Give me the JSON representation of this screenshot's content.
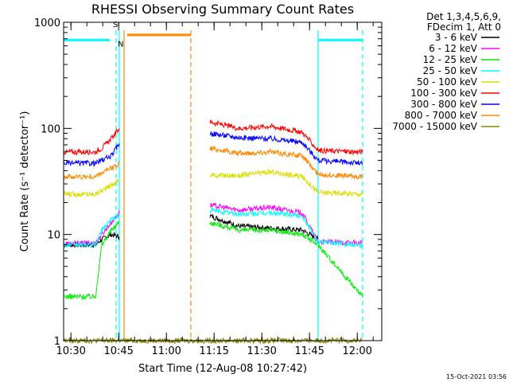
{
  "chart_data": {
    "type": "line",
    "title": "RHESSI Observing Summary Count Rates",
    "xlabel": "Start Time (12-Aug-08 10:27:42)",
    "ylabel": "Count Rate (s⁻¹ detector⁻¹)",
    "yscale": "log",
    "ylim": [
      1,
      1000
    ],
    "xlim_minutes": [
      0,
      100
    ],
    "x_tick_labels": [
      "10:30",
      "10:45",
      "11:00",
      "11:15",
      "11:30",
      "11:45",
      "12:00"
    ],
    "x_tick_minutes": [
      2.3,
      17.3,
      32.3,
      47.3,
      62.3,
      77.3,
      92.3
    ],
    "y_tick_labels": [
      "1",
      "10",
      "100",
      "1000"
    ],
    "y_tick_values": [
      1,
      10,
      100,
      1000
    ],
    "legend_header": [
      "Det 1,3,4,5,6,9,",
      "FDecim 1, Att 0"
    ],
    "footer_date": "15-Oct-2021 03:56",
    "flags": {
      "saa_label": "S",
      "night_label": "N"
    },
    "series": [
      {
        "name": "3 - 6 keV",
        "color": "#000000",
        "segments": [
          [
            [
              0,
              8
            ],
            [
              10,
              8
            ],
            [
              12,
              9
            ],
            [
              15,
              10
            ],
            [
              17.5,
              9.5
            ]
          ],
          [
            [
              46,
              15
            ],
            [
              55,
              12
            ],
            [
              65,
              11.5
            ],
            [
              75,
              11
            ],
            [
              80,
              9
            ]
          ]
        ]
      },
      {
        "name": "6 - 12 keV",
        "color": "#ff00ff",
        "segments": [
          [
            [
              0,
              8.2
            ],
            [
              10,
              8.3
            ],
            [
              12,
              10
            ],
            [
              15,
              13
            ],
            [
              17.5,
              16
            ]
          ],
          [
            [
              46,
              19
            ],
            [
              55,
              17
            ],
            [
              65,
              18
            ],
            [
              75,
              16
            ],
            [
              80,
              8.5
            ],
            [
              94,
              8.3
            ]
          ]
        ]
      },
      {
        "name": "12 - 25 keV",
        "color": "#00ee00",
        "segments": [
          [
            [
              0,
              2.6
            ],
            [
              10,
              2.6
            ],
            [
              12,
              8
            ],
            [
              15,
              11
            ],
            [
              17.5,
              13
            ]
          ],
          [
            [
              46,
              13
            ],
            [
              55,
              11
            ],
            [
              65,
              11
            ],
            [
              75,
              10
            ],
            [
              80,
              8
            ],
            [
              94,
              2.6
            ]
          ]
        ]
      },
      {
        "name": "25 - 50 keV",
        "color": "#00ffff",
        "segments": [
          [
            [
              0,
              8
            ],
            [
              10,
              8
            ],
            [
              12,
              11
            ],
            [
              15,
              14
            ],
            [
              17.5,
              15
            ]
          ],
          [
            [
              46,
              17
            ],
            [
              55,
              15.5
            ],
            [
              65,
              16
            ],
            [
              75,
              15
            ],
            [
              80,
              8.5
            ],
            [
              94,
              8
            ]
          ]
        ]
      },
      {
        "name": "50 - 100 keV",
        "color": "#dddd00",
        "segments": [
          [
            [
              0,
              24
            ],
            [
              10,
              24
            ],
            [
              12,
              26
            ],
            [
              15,
              29
            ],
            [
              17.5,
              33
            ]
          ],
          [
            [
              46,
              36
            ],
            [
              55,
              36
            ],
            [
              65,
              39
            ],
            [
              75,
              35
            ],
            [
              80,
              25
            ],
            [
              94,
              24
            ]
          ]
        ]
      },
      {
        "name": "100 - 300 keV",
        "color": "#ff0000",
        "segments": [
          [
            [
              0,
              60
            ],
            [
              10,
              60
            ],
            [
              12,
              65
            ],
            [
              15,
              80
            ],
            [
              17.5,
              100
            ]
          ],
          [
            [
              46,
              115
            ],
            [
              55,
              100
            ],
            [
              65,
              105
            ],
            [
              75,
              92
            ],
            [
              80,
              62
            ],
            [
              94,
              60
            ]
          ]
        ]
      },
      {
        "name": "300 - 800 keV",
        "color": "#0000ff",
        "segments": [
          [
            [
              0,
              47
            ],
            [
              10,
              47
            ],
            [
              12,
              50
            ],
            [
              15,
              55
            ],
            [
              17.5,
              72
            ]
          ],
          [
            [
              46,
              90
            ],
            [
              55,
              82
            ],
            [
              65,
              80
            ],
            [
              75,
              74
            ],
            [
              80,
              50
            ],
            [
              94,
              47
            ]
          ]
        ]
      },
      {
        "name": "800 - 7000 keV",
        "color": "#ff8800",
        "segments": [
          [
            [
              0,
              35
            ],
            [
              10,
              35
            ],
            [
              12,
              38
            ],
            [
              15,
              42
            ],
            [
              17.5,
              47
            ]
          ],
          [
            [
              46,
              65
            ],
            [
              55,
              58
            ],
            [
              65,
              60
            ],
            [
              75,
              55
            ],
            [
              80,
              37
            ],
            [
              94,
              35
            ]
          ]
        ]
      },
      {
        "name": "7000 - 15000 keV",
        "color": "#888800",
        "segments": [
          [
            [
              0,
              1
            ],
            [
              94,
              1
            ]
          ]
        ]
      }
    ],
    "status_bars": [
      {
        "name": "saa-flag",
        "color": "#00ffff",
        "y_value": 680,
        "ranges": [
          [
            0,
            14.5
          ],
          [
            80,
            94
          ]
        ]
      },
      {
        "name": "night-flag",
        "color": "#ff8800",
        "y_value": 760,
        "ranges": [
          [
            20,
            40
          ]
        ]
      }
    ],
    "vertical_markers": [
      {
        "name": "saa-start",
        "color": "#00ffff",
        "style": "dashed",
        "x": 16.5
      },
      {
        "name": "saa-end",
        "color": "#00ffff",
        "style": "solid",
        "x": 17.5
      },
      {
        "name": "night-start",
        "color": "#ff8800",
        "style": "solid",
        "x": 19
      },
      {
        "name": "night-end",
        "color": "#ff8800",
        "style": "dashed",
        "x": 40
      },
      {
        "name": "saa2-start",
        "color": "#00ffff",
        "style": "solid",
        "x": 80
      },
      {
        "name": "saa2-end",
        "color": "#00ffff",
        "style": "dashed",
        "x": 94
      }
    ]
  }
}
